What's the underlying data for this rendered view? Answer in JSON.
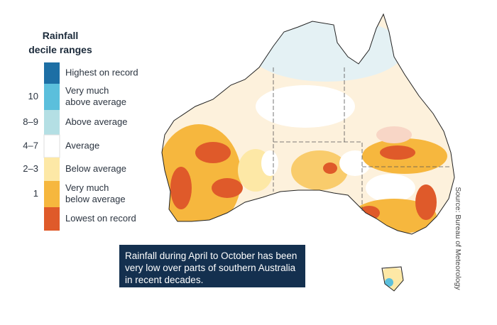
{
  "legend": {
    "title_line1": "Rainfall",
    "title_line2": "decile ranges",
    "items": [
      {
        "name": "Highest on record",
        "color": "#1d6fa5"
      },
      {
        "decile": "10",
        "name_line1": "Very much",
        "name_line2": "above average",
        "color": "#5bbfdc"
      },
      {
        "decile": "8–9",
        "name": "Above average",
        "color": "#b4dfe4"
      },
      {
        "decile": "4–7",
        "name": "Average",
        "color": "#ffffff"
      },
      {
        "decile": "2–3",
        "name": "Below average",
        "color": "#fde8a6"
      },
      {
        "decile": "1",
        "name_line1": "Very much",
        "name_line2": "below average",
        "color": "#f6b73e"
      },
      {
        "name": "Lowest on record",
        "color": "#df5a2a"
      }
    ]
  },
  "caption": "Rainfall during April to October has been very low over parts of southern Australia in recent decades.",
  "source": "Source: Bureau of Meteorology"
}
